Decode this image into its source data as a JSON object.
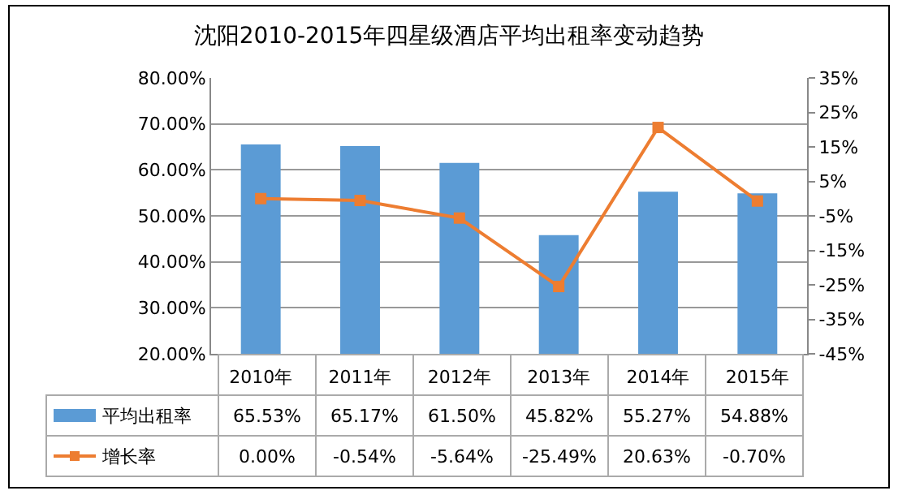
{
  "chart_data": {
    "type": "bar",
    "title": "沈阳2010-2015年四星级酒店平均出租率变动趋势",
    "categories": [
      "2010年",
      "2011年",
      "2012年",
      "2013年",
      "2014年",
      "2015年"
    ],
    "series": [
      {
        "name": "平均出租率",
        "color": "#5b9bd5",
        "values": [
          65.53,
          65.17,
          61.5,
          45.82,
          55.27,
          54.88
        ],
        "value_labels": [
          "65.53%",
          "65.17%",
          "61.50%",
          "45.82%",
          "55.27%",
          "54.88%"
        ]
      },
      {
        "name": "增长率",
        "type": "line",
        "axis": "y2",
        "color": "#ed7d31",
        "marker": "square",
        "values": [
          0,
          -0.54,
          -5.64,
          -25.49,
          20.63,
          -0.7
        ],
        "value_labels": [
          "0.00%",
          "-0.54%",
          "-5.64%",
          "-25.49%",
          "20.63%",
          "-0.70%"
        ]
      }
    ],
    "ylim": [
      20,
      80
    ],
    "yticks": [
      {
        "value": 20,
        "label": "20.00%"
      },
      {
        "value": 30,
        "label": "30.00%"
      },
      {
        "value": 40,
        "label": "40.00%"
      },
      {
        "value": 50,
        "label": "50.00%"
      },
      {
        "value": 60,
        "label": "60.00%"
      },
      {
        "value": 70,
        "label": "70.00%"
      },
      {
        "value": 80,
        "label": "80.00%"
      }
    ],
    "y2lim": [
      -45,
      35
    ],
    "y2ticks": [
      {
        "value": -45,
        "label": "-45%"
      },
      {
        "value": -35,
        "label": "-35%"
      },
      {
        "value": -25,
        "label": "-25%"
      },
      {
        "value": -15,
        "label": "-15%"
      },
      {
        "value": -5,
        "label": "-5%"
      },
      {
        "value": 5,
        "label": "5%"
      },
      {
        "value": 15,
        "label": "15%"
      },
      {
        "value": 25,
        "label": "25%"
      },
      {
        "value": 35,
        "label": "35%"
      }
    ],
    "grid": "y",
    "legend": "bottom"
  }
}
